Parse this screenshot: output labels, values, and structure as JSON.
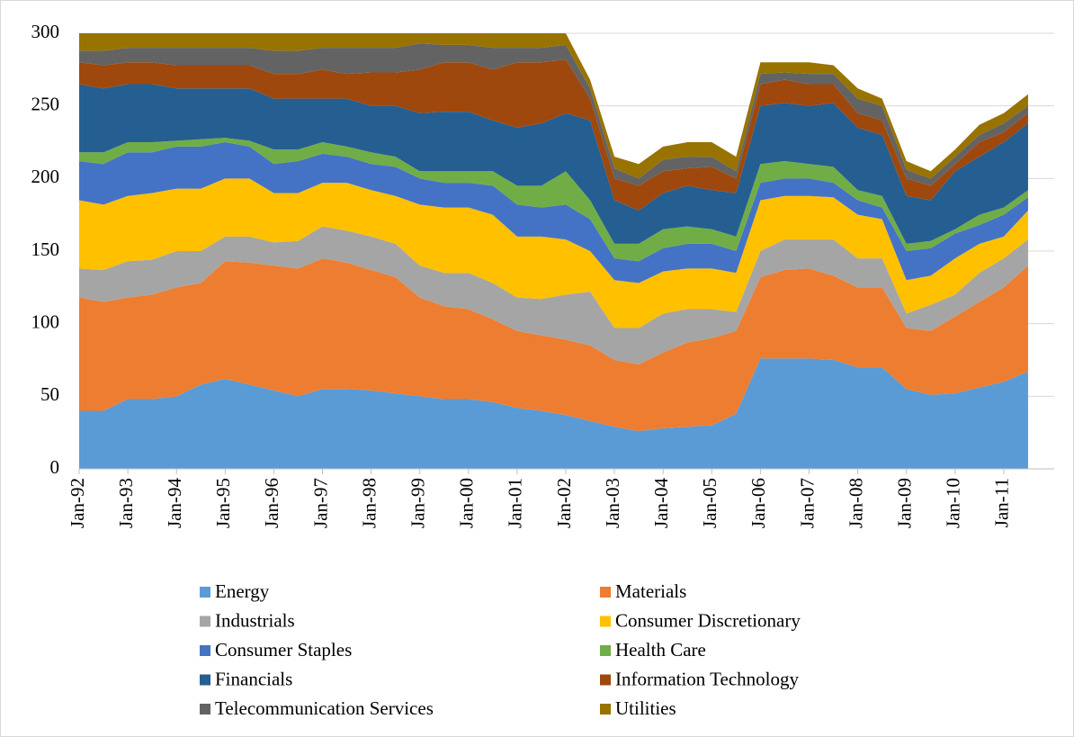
{
  "chart_data": {
    "type": "stacked_area",
    "categories": [
      "Jan-92",
      null,
      "Jan-93",
      null,
      "Jan-94",
      null,
      "Jan-95",
      null,
      "Jan-96",
      null,
      "Jan-97",
      null,
      "Jan-98",
      null,
      "Jan-99",
      null,
      "Jan-00",
      null,
      "Jan-01",
      null,
      "Jan-02",
      null,
      "Jan-03",
      null,
      "Jan-04",
      null,
      "Jan-05",
      null,
      "Jan-06",
      null,
      "Jan-07",
      null,
      "Jan-08",
      null,
      "Jan-09",
      null,
      "Jan-10",
      null,
      "Jan-11",
      null
    ],
    "ylim": [
      0,
      300
    ],
    "yticks": [
      0,
      50,
      100,
      150,
      200,
      250,
      300
    ],
    "grid": true,
    "series": [
      {
        "name": "Energy",
        "color": "#5b9bd5",
        "values": [
          40,
          40,
          48,
          48,
          50,
          58,
          62,
          58,
          54,
          50,
          55,
          55,
          54,
          52,
          50,
          48,
          48,
          46,
          42,
          40,
          37,
          33,
          29,
          26,
          28,
          29,
          30,
          38,
          76,
          76,
          76,
          75,
          70,
          70,
          55,
          51,
          52,
          56,
          60,
          67
        ]
      },
      {
        "name": "Materials",
        "color": "#ed7d31",
        "values": [
          78,
          75,
          70,
          72,
          75,
          70,
          81,
          84,
          86,
          88,
          90,
          87,
          83,
          80,
          68,
          64,
          62,
          57,
          53,
          52,
          52,
          52,
          46,
          46,
          52,
          58,
          60,
          57,
          56,
          61,
          62,
          58,
          55,
          55,
          42,
          44,
          53,
          59,
          65,
          73
        ]
      },
      {
        "name": "Industrials",
        "color": "#a5a5a5",
        "values": [
          20,
          22,
          25,
          24,
          25,
          22,
          17,
          18,
          16,
          19,
          22,
          22,
          23,
          23,
          22,
          23,
          25,
          25,
          23,
          25,
          31,
          37,
          22,
          25,
          27,
          23,
          20,
          13,
          18,
          21,
          20,
          25,
          20,
          20,
          10,
          18,
          15,
          20,
          20,
          18
        ]
      },
      {
        "name": "Consumer Discretionary",
        "color": "#ffc000",
        "values": [
          47,
          45,
          45,
          46,
          43,
          43,
          40,
          40,
          34,
          33,
          30,
          33,
          32,
          33,
          42,
          45,
          45,
          47,
          42,
          43,
          38,
          28,
          33,
          31,
          29,
          28,
          28,
          27,
          35,
          30,
          30,
          29,
          30,
          27,
          23,
          20,
          25,
          20,
          15,
          20
        ]
      },
      {
        "name": "Consumer Staples",
        "color": "#4472c4",
        "values": [
          27,
          28,
          30,
          28,
          29,
          29,
          25,
          22,
          20,
          22,
          20,
          18,
          18,
          20,
          18,
          17,
          17,
          20,
          22,
          20,
          24,
          22,
          15,
          15,
          16,
          17,
          17,
          15,
          12,
          12,
          12,
          10,
          10,
          8,
          20,
          19,
          17,
          13,
          15,
          9
        ]
      },
      {
        "name": "Health Care",
        "color": "#70ad47",
        "values": [
          6,
          8,
          7,
          7,
          4,
          5,
          3,
          4,
          10,
          8,
          8,
          7,
          8,
          7,
          5,
          8,
          8,
          10,
          13,
          15,
          23,
          13,
          10,
          12,
          13,
          12,
          10,
          10,
          13,
          12,
          10,
          11,
          7,
          8,
          5,
          5,
          3,
          7,
          5,
          5
        ]
      },
      {
        "name": "Financials",
        "color": "#255e91",
        "values": [
          47,
          44,
          40,
          40,
          36,
          35,
          34,
          36,
          35,
          35,
          30,
          33,
          32,
          35,
          40,
          41,
          41,
          35,
          40,
          43,
          40,
          55,
          30,
          23,
          25,
          28,
          27,
          30,
          40,
          40,
          40,
          44,
          43,
          42,
          33,
          28,
          40,
          40,
          45,
          46
        ]
      },
      {
        "name": "Information Technology",
        "color": "#9e480e",
        "values": [
          15,
          16,
          15,
          15,
          16,
          16,
          16,
          16,
          17,
          17,
          20,
          17,
          23,
          23,
          30,
          34,
          34,
          35,
          45,
          42,
          37,
          15,
          15,
          17,
          15,
          12,
          16,
          10,
          15,
          16,
          15,
          13,
          10,
          10,
          12,
          10,
          5,
          10,
          7,
          7
        ]
      },
      {
        "name": "Telecommunication Services",
        "color": "#636363",
        "values": [
          8,
          10,
          10,
          10,
          12,
          12,
          12,
          12,
          16,
          16,
          15,
          18,
          17,
          17,
          18,
          12,
          12,
          15,
          10,
          10,
          10,
          7,
          7,
          5,
          8,
          8,
          7,
          5,
          7,
          5,
          7,
          7,
          10,
          10,
          6,
          5,
          5,
          5,
          6,
          5
        ]
      },
      {
        "name": "Utilities",
        "color": "#997300",
        "values": [
          12,
          12,
          10,
          10,
          10,
          10,
          10,
          10,
          12,
          12,
          10,
          10,
          10,
          10,
          7,
          8,
          8,
          10,
          10,
          10,
          8,
          6,
          8,
          10,
          9,
          10,
          10,
          10,
          8,
          7,
          8,
          6,
          7,
          5,
          6,
          5,
          5,
          7,
          7,
          8
        ]
      }
    ]
  }
}
